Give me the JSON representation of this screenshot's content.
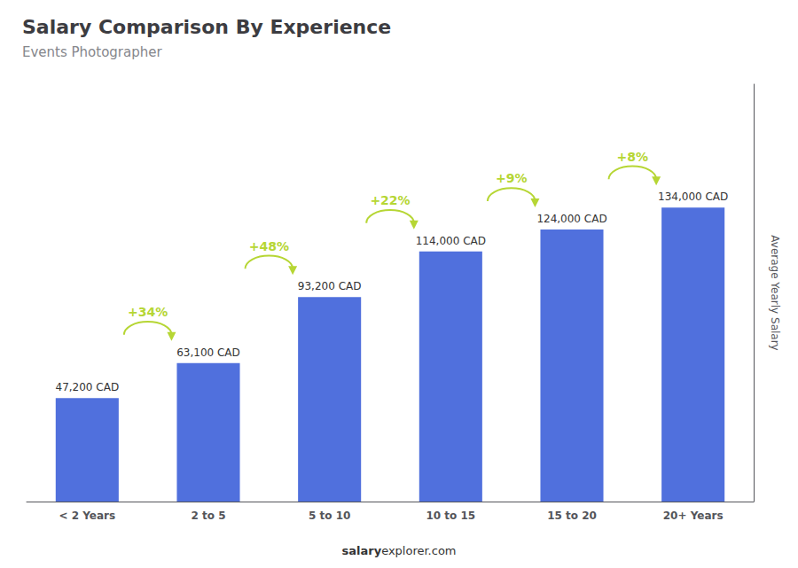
{
  "chart_data": {
    "type": "bar",
    "title": "Salary Comparison By Experience",
    "subtitle": "Events Photographer",
    "categories": [
      "< 2 Years",
      "2 to 5",
      "5 to 10",
      "10 to 15",
      "15 to 20",
      "20+ Years"
    ],
    "values": [
      47200,
      63100,
      93200,
      114000,
      124000,
      134000
    ],
    "value_labels": [
      "47,200 CAD",
      "63,100 CAD",
      "93,200 CAD",
      "114,000 CAD",
      "124,000 CAD",
      "134,000 CAD"
    ],
    "data_labels": true,
    "annotations": [
      "+34%",
      "+48%",
      "+22%",
      "+9%",
      "+8%"
    ],
    "ylabel": "Average Yearly Salary",
    "footer": [
      "salary",
      "explorer.com"
    ],
    "ylim": [
      0,
      190280
    ],
    "yticks": [],
    "tick_labels": "x",
    "grid": false
  }
}
